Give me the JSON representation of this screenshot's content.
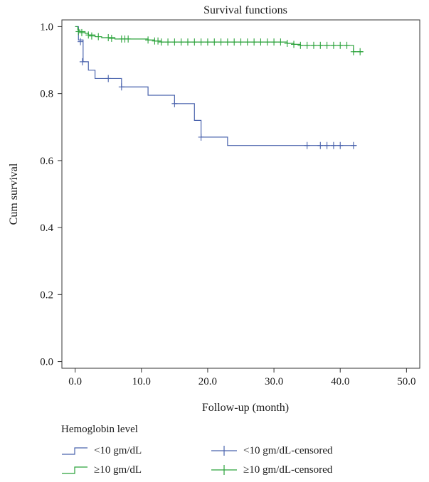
{
  "chart_data": {
    "type": "line",
    "step": true,
    "title": "Survival functions",
    "xlabel": "Follow-up (month)",
    "ylabel": "Cum survival",
    "xlim": [
      -2,
      52
    ],
    "ylim": [
      -0.02,
      1.02
    ],
    "xticks": [
      0,
      10,
      20,
      30,
      40,
      50
    ],
    "xtick_labels": [
      "0.0",
      "10.0",
      "20.0",
      "30.0",
      "40.0",
      "50.0"
    ],
    "yticks": [
      0,
      0.2,
      0.4,
      0.6,
      0.8,
      1.0
    ],
    "ytick_labels": [
      "0.0",
      "0.2",
      "0.4",
      "0.6",
      "0.8",
      "1.0"
    ],
    "grid": false,
    "legend_title": "Hemoglobin level",
    "legend_position": "bottom",
    "series": [
      {
        "name": "<10 gm/dL",
        "censored_name": "<10 gm/dL-censored",
        "color": "#4a63ad",
        "steps": [
          [
            0,
            1.0
          ],
          [
            0.5,
            0.96
          ],
          [
            1.2,
            0.895
          ],
          [
            2,
            0.87
          ],
          [
            3,
            0.845
          ],
          [
            7,
            0.82
          ],
          [
            11,
            0.795
          ],
          [
            15,
            0.77
          ],
          [
            18,
            0.72
          ],
          [
            19,
            0.67
          ],
          [
            23,
            0.645
          ],
          [
            42.5,
            0.645
          ]
        ],
        "censored": [
          [
            0.8,
            0.955
          ],
          [
            1.1,
            0.895
          ],
          [
            5,
            0.845
          ],
          [
            7,
            0.82
          ],
          [
            15,
            0.77
          ],
          [
            19,
            0.67
          ],
          [
            35,
            0.645
          ],
          [
            37,
            0.645
          ],
          [
            38,
            0.645
          ],
          [
            39,
            0.645
          ],
          [
            40,
            0.645
          ],
          [
            42,
            0.645
          ]
        ]
      },
      {
        "name": "≥10 gm/dL",
        "censored_name": "≥10 gm/dL-censored",
        "color": "#2aa23a",
        "steps": [
          [
            0,
            1.0
          ],
          [
            0.4,
            0.99
          ],
          [
            0.7,
            0.985
          ],
          [
            1.5,
            0.98
          ],
          [
            2,
            0.975
          ],
          [
            3,
            0.97
          ],
          [
            4,
            0.967
          ],
          [
            6,
            0.963
          ],
          [
            11,
            0.96
          ],
          [
            12,
            0.957
          ],
          [
            13,
            0.954
          ],
          [
            32,
            0.95
          ],
          [
            33,
            0.947
          ],
          [
            34,
            0.944
          ],
          [
            42,
            0.925
          ],
          [
            43.5,
            0.925
          ]
        ],
        "censored": [
          [
            0.5,
            0.985
          ],
          [
            1,
            0.982
          ],
          [
            2,
            0.975
          ],
          [
            2.5,
            0.972
          ],
          [
            3.5,
            0.97
          ],
          [
            5,
            0.967
          ],
          [
            5.5,
            0.965
          ],
          [
            7,
            0.963
          ],
          [
            7.5,
            0.963
          ],
          [
            8,
            0.963
          ],
          [
            11,
            0.96
          ],
          [
            12,
            0.957
          ],
          [
            12.5,
            0.957
          ],
          [
            13,
            0.954
          ],
          [
            14,
            0.954
          ],
          [
            15,
            0.954
          ],
          [
            16,
            0.954
          ],
          [
            17,
            0.954
          ],
          [
            18,
            0.954
          ],
          [
            19,
            0.954
          ],
          [
            20,
            0.954
          ],
          [
            21,
            0.954
          ],
          [
            22,
            0.954
          ],
          [
            23,
            0.954
          ],
          [
            24,
            0.954
          ],
          [
            25,
            0.954
          ],
          [
            26,
            0.954
          ],
          [
            27,
            0.954
          ],
          [
            28,
            0.954
          ],
          [
            29,
            0.954
          ],
          [
            30,
            0.954
          ],
          [
            31,
            0.954
          ],
          [
            32,
            0.95
          ],
          [
            33,
            0.947
          ],
          [
            34,
            0.944
          ],
          [
            35,
            0.944
          ],
          [
            36,
            0.944
          ],
          [
            37,
            0.944
          ],
          [
            38,
            0.944
          ],
          [
            39,
            0.944
          ],
          [
            40,
            0.944
          ],
          [
            41,
            0.944
          ],
          [
            42,
            0.925
          ],
          [
            43,
            0.925
          ]
        ]
      }
    ]
  }
}
